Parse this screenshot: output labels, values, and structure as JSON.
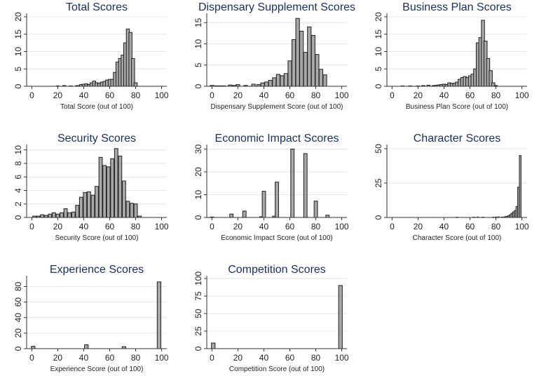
{
  "chart_data": [
    {
      "type": "bar",
      "title": "Total Scores",
      "xlabel": "Total Score (out of 100)",
      "ylabel": "",
      "xlim": [
        -4,
        104
      ],
      "ylim": [
        0,
        21
      ],
      "bin_width": 2.4,
      "grid": true,
      "x_ticks": [
        0,
        20,
        40,
        60,
        80,
        100
      ],
      "y_ticks": [
        0,
        5,
        10,
        15,
        20
      ],
      "bin_centers": [
        20,
        25,
        30,
        35,
        38,
        40,
        42,
        44,
        46,
        48,
        50,
        52,
        54,
        56,
        58,
        60,
        62,
        64,
        66,
        68,
        70,
        72,
        74,
        76,
        78,
        80
      ],
      "values": [
        0.1,
        0.2,
        0.1,
        0.2,
        0.5,
        0.6,
        0.7,
        0.5,
        1.0,
        1.5,
        1.0,
        0.9,
        1.2,
        1.4,
        1.8,
        2.0,
        2.0,
        4.0,
        7.0,
        8.0,
        9.0,
        12.5,
        16.5,
        15.5,
        8.0,
        1.0
      ]
    },
    {
      "type": "bar",
      "title": "Dispensary Supplement Scores",
      "xlabel": "Dispensary Supplement Score (out of 100)",
      "ylabel": "",
      "xlim": [
        -4,
        104
      ],
      "ylim": [
        0,
        17.2
      ],
      "bin_width": 2.8,
      "grid": true,
      "x_ticks": [
        0,
        20,
        40,
        60,
        80,
        100
      ],
      "y_ticks": [
        0,
        5,
        10,
        15
      ],
      "bin_centers": [
        0,
        3,
        6,
        9,
        14,
        17,
        20,
        26,
        32,
        36,
        39,
        42,
        45,
        48,
        51,
        54,
        57,
        60,
        63,
        66,
        69,
        72,
        75,
        78,
        81,
        84,
        87
      ],
      "values": [
        0.2,
        0.1,
        0.1,
        0.1,
        0.3,
        0.2,
        0.4,
        0.2,
        0.5,
        0.4,
        0.8,
        1.0,
        1.4,
        2.0,
        2.8,
        2.5,
        3.0,
        6.0,
        11.0,
        16.0,
        13.0,
        8.0,
        14.0,
        12.0,
        7.5,
        4.0,
        2.7
      ]
    },
    {
      "type": "bar",
      "title": "Business Plan Scores",
      "xlabel": "Business Plan Score (out of 100)",
      "ylabel": "",
      "xlim": [
        -4,
        104
      ],
      "ylim": [
        0,
        21
      ],
      "bin_width": 2.4,
      "grid": true,
      "x_ticks": [
        0,
        20,
        40,
        60,
        80,
        100
      ],
      "y_ticks": [
        0,
        5,
        10,
        15,
        20
      ],
      "bin_centers": [
        8,
        14,
        20,
        24,
        28,
        32,
        34,
        36,
        38,
        40,
        42,
        44,
        46,
        48,
        50,
        52,
        54,
        56,
        58,
        60,
        62,
        64,
        66,
        68,
        70,
        72,
        74,
        76,
        78,
        80
      ],
      "values": [
        0.1,
        0.1,
        0.1,
        0.2,
        0.3,
        0.2,
        0.3,
        0.4,
        0.5,
        0.6,
        0.5,
        1.0,
        0.8,
        0.9,
        1.2,
        2.0,
        2.5,
        2.8,
        2.5,
        3.0,
        3.5,
        5.0,
        12.5,
        14.0,
        19.0,
        13.0,
        8.0,
        4.5,
        1.0,
        0.2
      ]
    },
    {
      "type": "bar",
      "title": "Security Scores",
      "xlabel": "Security Score (out of 100)",
      "ylabel": "",
      "xlim": [
        -4,
        104
      ],
      "ylim": [
        0,
        10.8
      ],
      "bin_width": 2.6,
      "grid": true,
      "x_ticks": [
        0,
        20,
        40,
        60,
        80,
        100
      ],
      "y_ticks": [
        0,
        2,
        4,
        6,
        8,
        10
      ],
      "bin_centers": [
        2,
        5,
        8,
        11,
        14,
        17,
        20,
        23,
        26,
        29,
        32,
        35,
        38,
        41,
        44,
        47,
        50,
        53,
        56,
        59,
        62,
        65,
        68,
        71,
        74,
        77,
        80,
        83
      ],
      "values": [
        0.2,
        0.2,
        0.4,
        0.3,
        0.5,
        0.7,
        0.5,
        0.7,
        1.3,
        0.7,
        0.8,
        1.8,
        3.0,
        3.7,
        3.8,
        3.3,
        4.6,
        8.9,
        7.7,
        7.5,
        8.7,
        10.2,
        9.1,
        5.4,
        2.4,
        2.1,
        2.0,
        0.2
      ]
    },
    {
      "type": "bar",
      "title": "Economic Impact Scores",
      "xlabel": "Economic Impact Score (out of 100)",
      "ylabel": "",
      "xlim": [
        -4,
        104
      ],
      "ylim": [
        0,
        32
      ],
      "bin_width": 2.6,
      "grid": true,
      "x_ticks": [
        0,
        20,
        40,
        60,
        80,
        100
      ],
      "y_ticks": [
        0,
        10,
        20,
        30
      ],
      "bin_centers": [
        0,
        15,
        25,
        38,
        40,
        48,
        50,
        62,
        72,
        80,
        89
      ],
      "values": [
        0.2,
        1.5,
        2.8,
        0.3,
        11.5,
        0.6,
        15.5,
        30.0,
        28.0,
        7.2,
        1.0
      ]
    },
    {
      "type": "bar",
      "title": "Character Scores",
      "xlabel": "Character Score (out of 100)",
      "ylabel": "",
      "xlim": [
        -4,
        104
      ],
      "ylim": [
        0,
        53
      ],
      "bin_width": 1.3,
      "grid": true,
      "x_ticks": [
        0,
        20,
        40,
        60,
        80,
        100
      ],
      "y_ticks": [
        0,
        25,
        50
      ],
      "bin_centers": [
        50,
        63,
        66,
        70,
        78,
        80,
        82,
        85,
        87,
        88.3,
        89.6,
        90.9,
        92.2,
        93.5,
        94.8,
        96.1,
        97.4,
        98.7
      ],
      "values": [
        0.2,
        0.2,
        0.3,
        0.2,
        0.2,
        0.3,
        0.4,
        0.3,
        0.5,
        0.8,
        1.2,
        2.0,
        3.0,
        4.0,
        5.0,
        8.0,
        22.0,
        45.0
      ]
    },
    {
      "type": "bar",
      "title": "Experience Scores",
      "xlabel": "Experience Score (out of 100)",
      "ylabel": "",
      "xlim": [
        -4,
        104
      ],
      "ylim": [
        0,
        94
      ],
      "bin_width": 2.8,
      "grid": true,
      "x_ticks": [
        0,
        20,
        40,
        60,
        80,
        100
      ],
      "y_ticks": [
        0,
        20,
        40,
        60,
        80
      ],
      "bin_centers": [
        1,
        42,
        71,
        98
      ],
      "values": [
        3.0,
        5.0,
        2.5,
        86.0
      ]
    },
    {
      "type": "bar",
      "title": "Competition Scores",
      "xlabel": "Competition Score (out of 100)",
      "ylabel": "",
      "xlim": [
        -4,
        104
      ],
      "ylim": [
        0,
        104
      ],
      "bin_width": 2.8,
      "grid": true,
      "x_ticks": [
        0,
        20,
        40,
        60,
        80,
        100
      ],
      "y_ticks": [
        0,
        25,
        50,
        75,
        100
      ],
      "bin_centers": [
        1,
        99
      ],
      "values": [
        8.0,
        90.0
      ]
    }
  ]
}
